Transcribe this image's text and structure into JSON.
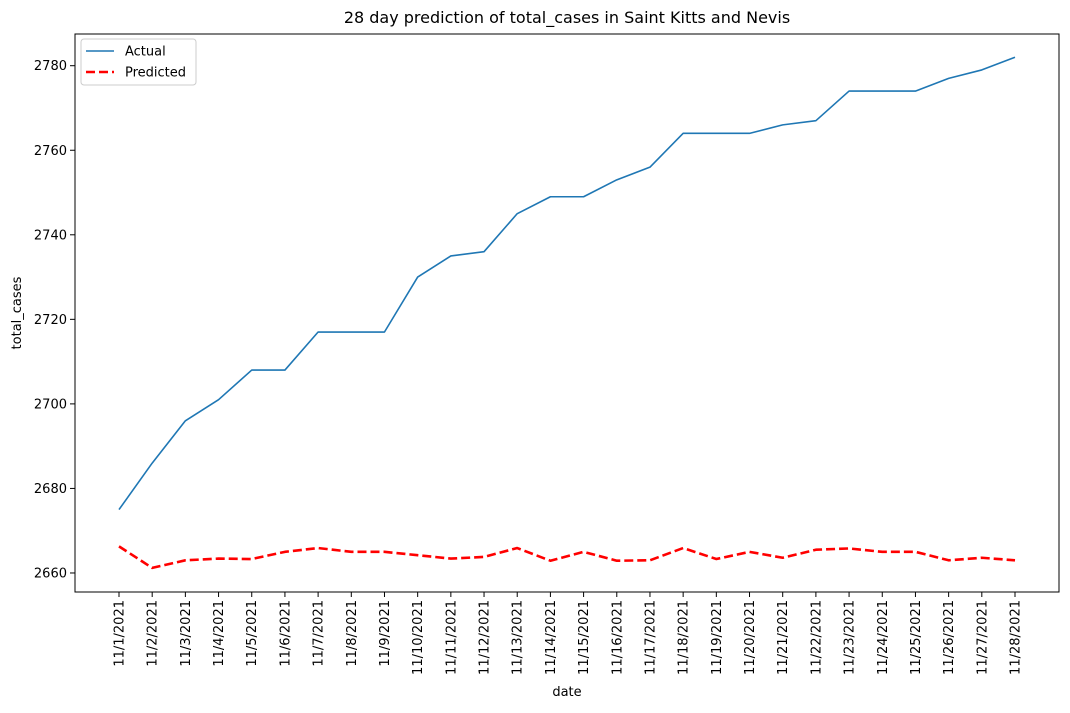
{
  "chart_data": {
    "type": "line",
    "title": "28 day prediction of total_cases in Saint Kitts and Nevis",
    "xlabel": "date",
    "ylabel": "total_cases",
    "x": [
      "11/1/2021",
      "11/2/2021",
      "11/3/2021",
      "11/4/2021",
      "11/5/2021",
      "11/6/2021",
      "11/7/2021",
      "11/8/2021",
      "11/9/2021",
      "11/10/2021",
      "11/11/2021",
      "11/12/2021",
      "11/13/2021",
      "11/14/2021",
      "11/15/2021",
      "11/16/2021",
      "11/17/2021",
      "11/18/2021",
      "11/19/2021",
      "11/20/2021",
      "11/21/2021",
      "11/22/2021",
      "11/23/2021",
      "11/24/2021",
      "11/25/2021",
      "11/26/2021",
      "11/27/2021",
      "11/28/2021"
    ],
    "ylim": [
      2655.5,
      2787.5
    ],
    "yticks": [
      2660,
      2680,
      2700,
      2720,
      2740,
      2760,
      2780
    ],
    "grid": false,
    "legend_position": "top-left",
    "series": [
      {
        "name": "Actual",
        "color": "#1f77b4",
        "style": "solid",
        "values": [
          2675,
          2686,
          2696,
          2701,
          2708,
          2708,
          2717,
          2717,
          2717,
          2730,
          2735,
          2736,
          2745,
          2749,
          2749,
          2753,
          2756,
          2764,
          2764,
          2764,
          2766,
          2767,
          2774,
          2774,
          2774,
          2777,
          2779,
          2782
        ]
      },
      {
        "name": "Predicted",
        "color": "#ff0000",
        "style": "dashed",
        "values": [
          2666.3,
          2661.2,
          2663.0,
          2663.4,
          2663.3,
          2665.0,
          2665.9,
          2665.0,
          2665.0,
          2664.2,
          2663.4,
          2663.8,
          2665.9,
          2662.9,
          2665.0,
          2662.9,
          2663.0,
          2665.9,
          2663.3,
          2665.0,
          2663.6,
          2665.5,
          2665.8,
          2665.0,
          2665.0,
          2663.0,
          2663.6,
          2663.0
        ]
      }
    ]
  }
}
